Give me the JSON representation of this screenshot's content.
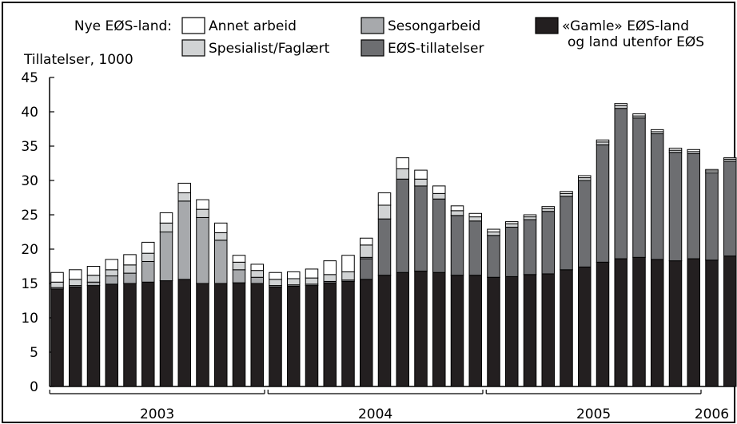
{
  "chart_data": {
    "type": "bar",
    "stacked": true,
    "ylabel": "Tillatelser, 1000",
    "ylim": [
      0,
      45
    ],
    "yticks": [
      0,
      5,
      10,
      15,
      20,
      25,
      30,
      35,
      40,
      45
    ],
    "grid": false,
    "legend_placement": "top",
    "legend_title": "Nye EØS-land:",
    "year_labels": [
      {
        "label": "2003",
        "from": 0,
        "to": 11
      },
      {
        "label": "2004",
        "from": 12,
        "to": 23
      },
      {
        "label": "2005",
        "from": 24,
        "to": 35
      },
      {
        "label": "2006",
        "from": 36,
        "to": 36
      }
    ],
    "series": [
      {
        "name": "«Gamle» EØS-land og land utenfor EØS",
        "name_lines": [
          "«Gamle» EØS-land",
          "og land utenfor EØS"
        ],
        "color": "#231f20",
        "values": [
          14.2,
          14.5,
          14.7,
          14.9,
          15.0,
          15.2,
          15.4,
          15.6,
          15.0,
          15.0,
          15.1,
          15.0,
          14.5,
          14.6,
          14.7,
          15.1,
          15.3,
          15.6,
          16.2,
          16.6,
          16.8,
          16.6,
          16.2,
          16.2,
          15.9,
          16.0,
          16.3,
          16.4,
          17.0,
          17.4,
          18.1,
          18.6,
          18.8,
          18.5,
          18.3,
          18.6,
          18.4,
          19.0
        ]
      },
      {
        "name": "EØS-tillatelser",
        "name_lines": [
          "EØS-tillatelser"
        ],
        "color": "#6d6e71",
        "values": [
          0,
          0,
          0,
          0,
          0,
          0,
          0,
          0,
          0,
          0,
          0,
          0,
          0,
          0,
          0,
          0,
          0,
          3.0,
          8.2,
          13.6,
          12.4,
          10.7,
          8.7,
          7.9,
          6.1,
          7.2,
          8.0,
          9.1,
          10.7,
          12.6,
          17.1,
          21.9,
          20.3,
          18.3,
          15.8,
          15.3,
          12.7,
          13.8
        ]
      },
      {
        "name": "Sesongarbeid",
        "name_lines": [
          "Sesongarbeid"
        ],
        "color": "#a7a9ac",
        "values": [
          0.2,
          0.2,
          0.5,
          1.2,
          1.5,
          3.0,
          7.1,
          11.4,
          9.6,
          6.3,
          1.9,
          0.9,
          0.2,
          0.2,
          0.2,
          0.2,
          0.2,
          0.2,
          0,
          0,
          0,
          0,
          0,
          0,
          0,
          0,
          0,
          0,
          0,
          0,
          0,
          0,
          0,
          0,
          0,
          0,
          0,
          0
        ]
      },
      {
        "name": "Spesialist/Faglært",
        "name_lines": [
          "Spesialist/Faglært"
        ],
        "color": "#d1d3d4",
        "values": [
          0.8,
          0.9,
          1.0,
          0.9,
          1.2,
          1.2,
          1.3,
          1.2,
          1.2,
          1.1,
          1.1,
          1.0,
          0.9,
          0.9,
          0.9,
          1.0,
          1.2,
          1.8,
          2.0,
          1.5,
          1.0,
          0.8,
          0.7,
          0.6,
          0.5,
          0.5,
          0.4,
          0.4,
          0.4,
          0.4,
          0.4,
          0.4,
          0.3,
          0.3,
          0.3,
          0.3,
          0.3,
          0.3
        ]
      },
      {
        "name": "Annet arbeid",
        "name_lines": [
          "Annet arbeid"
        ],
        "color": "#ffffff",
        "values": [
          1.4,
          1.4,
          1.3,
          1.5,
          1.5,
          1.6,
          1.5,
          1.4,
          1.4,
          1.4,
          1.0,
          0.9,
          1.0,
          1.0,
          1.3,
          2.0,
          2.4,
          1.0,
          1.8,
          1.6,
          1.3,
          1.1,
          0.7,
          0.5,
          0.4,
          0.3,
          0.3,
          0.3,
          0.3,
          0.3,
          0.3,
          0.3,
          0.3,
          0.3,
          0.3,
          0.3,
          0.2,
          0.2
        ]
      }
    ]
  }
}
